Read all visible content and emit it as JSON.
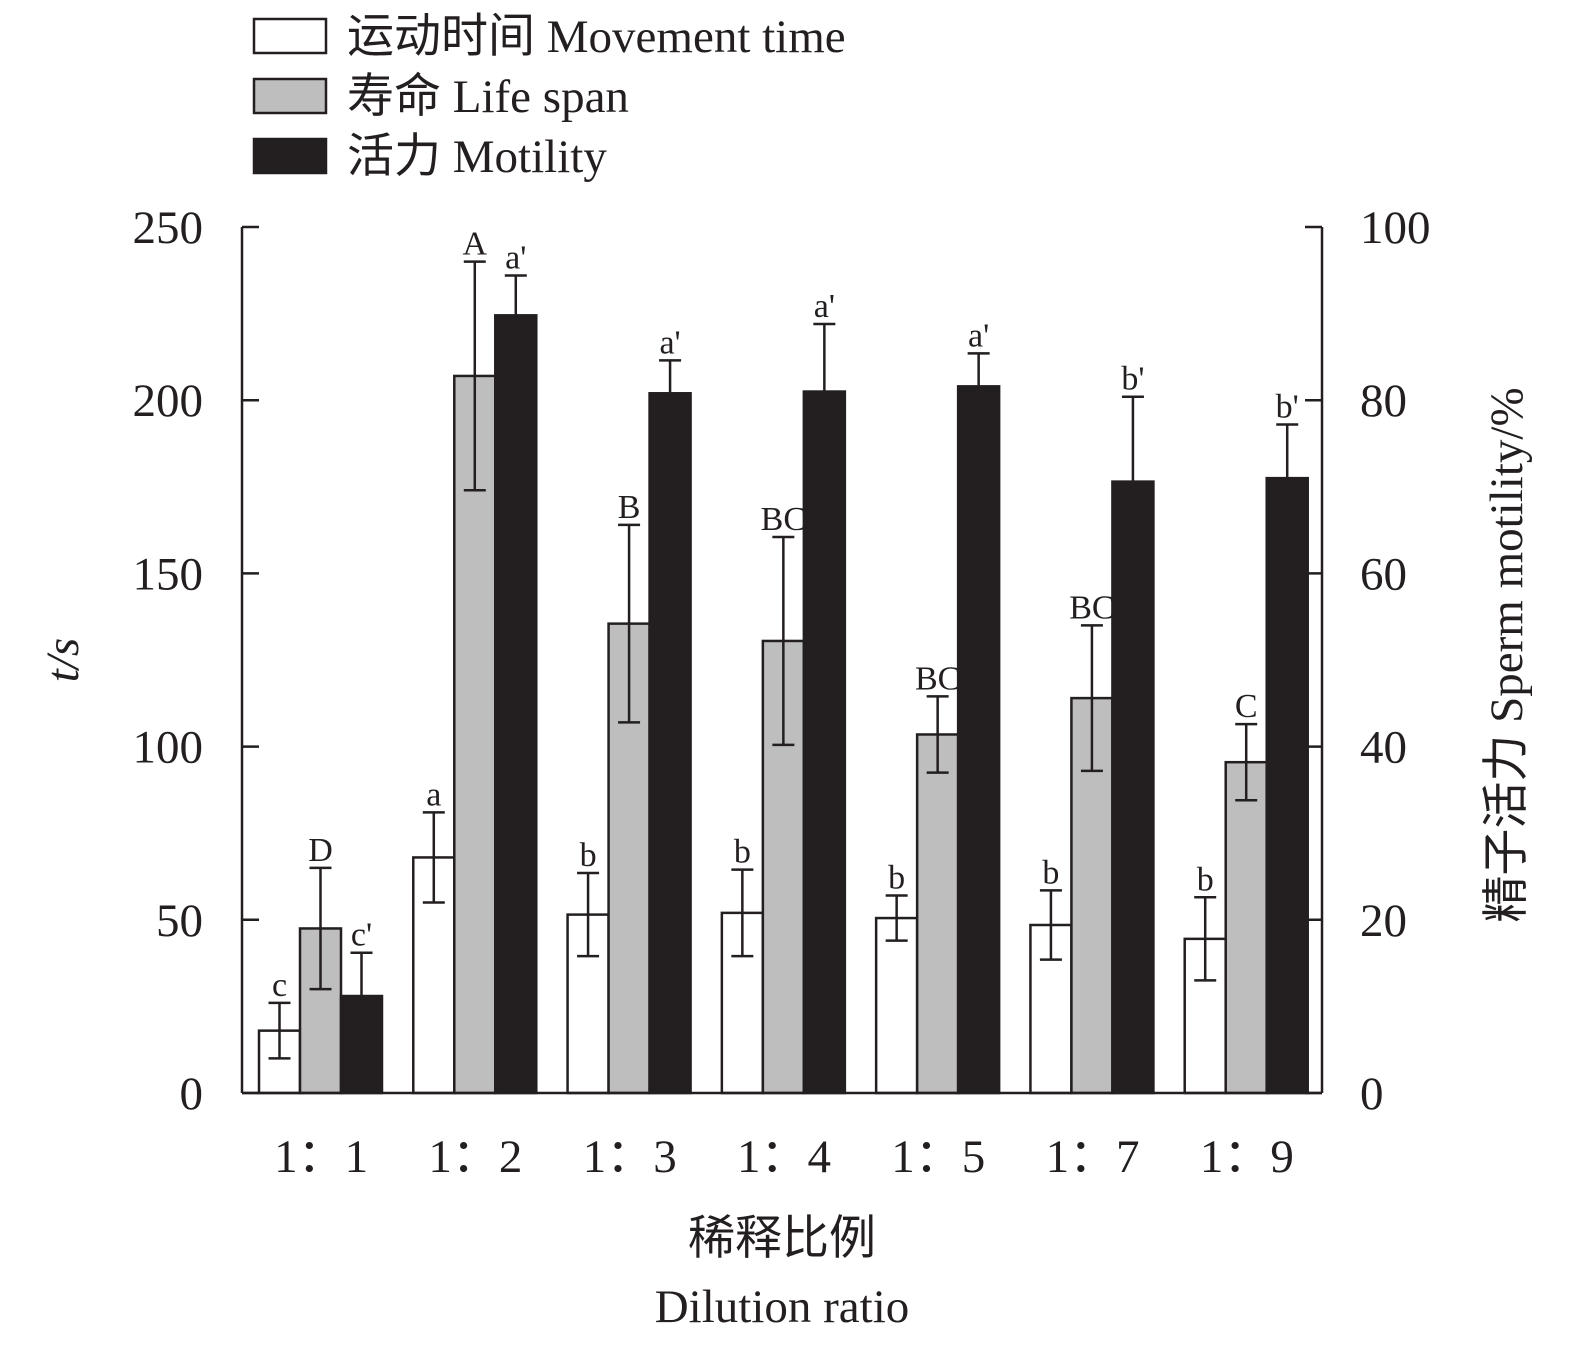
{
  "chart_data": {
    "type": "bar",
    "categories": [
      "1：1",
      "1：2",
      "1：3",
      "1：4",
      "1：5",
      "1：7",
      "1：9"
    ],
    "xlabel": [
      "稀释比例",
      "Dilution ratio"
    ],
    "ylabel_left": "t/s",
    "ylabel_right": "精子活力 Sperm motility/%",
    "ylim_left": [
      0,
      250
    ],
    "ylim_right": [
      0,
      100
    ],
    "yticks_left": [
      "0",
      "50",
      "100",
      "150",
      "200",
      "250"
    ],
    "yticks_right": [
      "0",
      "20",
      "40",
      "60",
      "80",
      "100"
    ],
    "grid": false,
    "legend_position": "top-left",
    "series": [
      {
        "name": "运动时间 Movement time",
        "axis": "left",
        "color": "#ffffff",
        "values": [
          18,
          68,
          51.5,
          52,
          50.5,
          48.5,
          44.5
        ],
        "errors": [
          8,
          13,
          12,
          12.5,
          6.5,
          10,
          12
        ],
        "labels": [
          "c",
          "a",
          "b",
          "b",
          "b",
          "b",
          "b"
        ]
      },
      {
        "name": "寿命 Life span",
        "axis": "left",
        "color": "#bebebe",
        "values": [
          47.5,
          207,
          135.5,
          130.5,
          103.5,
          114,
          95.5
        ],
        "errors": [
          17.5,
          33,
          28.5,
          30,
          11,
          21,
          11
        ],
        "labels": [
          "D",
          "A",
          "B",
          "BC",
          "BC",
          "BC",
          "C"
        ]
      },
      {
        "name": "活力 Motility",
        "axis": "right",
        "color": "#231f20",
        "values": [
          11.2,
          89.8,
          80.8,
          81,
          81.6,
          70.6,
          71
        ],
        "errors": [
          5,
          4.6,
          3.8,
          7.8,
          3.8,
          9.8,
          6.2
        ],
        "labels": [
          "c'",
          "a'",
          "a'",
          "a'",
          "a'",
          "b'",
          "b'"
        ]
      }
    ]
  }
}
